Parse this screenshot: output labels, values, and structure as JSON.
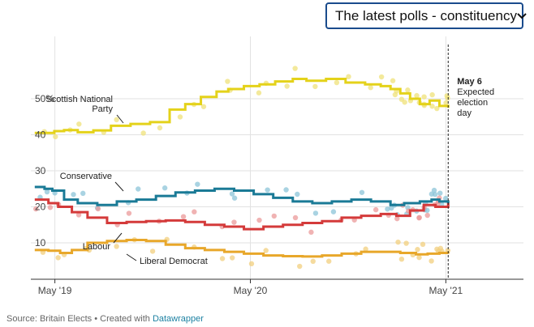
{
  "dropdown": {
    "selected": "The latest polls - constituency"
  },
  "footer": {
    "source_text": "Source: Britain Elects • Created with ",
    "tool_link": "Datawrapper"
  },
  "annotation": {
    "date": "May 6",
    "line1": "Expected",
    "line2": "election",
    "line3": "day"
  },
  "colors": {
    "snp": "#e4d21a",
    "conservative": "#1a7a96",
    "labour": "#d43a3a",
    "libdem": "#e8a72a",
    "snp_dot": "#efe27a",
    "con_dot": "#8cc4d8",
    "lab_dot": "#eb9a9a",
    "ld_dot": "#f2cf7e"
  },
  "chart_data": {
    "type": "line",
    "title": "",
    "xlabel": "",
    "ylabel": "",
    "ylim": [
      0,
      60
    ],
    "xlim": [
      2019.21,
      2021.73
    ],
    "x_ticks": [
      {
        "value": 2019.333,
        "label": "May '19"
      },
      {
        "value": 2020.333,
        "label": "May '20"
      },
      {
        "value": 2021.333,
        "label": "May '21"
      }
    ],
    "y_ticks": [
      {
        "value": 10,
        "label": "10"
      },
      {
        "value": 20,
        "label": "20"
      },
      {
        "value": 30,
        "label": "30"
      },
      {
        "value": 40,
        "label": "40"
      },
      {
        "value": 50,
        "label": "50%"
      }
    ],
    "reference_line": {
      "x": 2021.345,
      "label": "May 6 Expected election day"
    },
    "series": [
      {
        "name": "Scottish National Party",
        "label_line1": "Scottish National",
        "label_line2": "Party",
        "key": "snp",
        "x": [
          2019.23,
          2019.33,
          2019.38,
          2019.45,
          2019.53,
          2019.62,
          2019.72,
          2019.82,
          2019.92,
          2020.0,
          2020.08,
          2020.16,
          2020.22,
          2020.3,
          2020.38,
          2020.46,
          2020.55,
          2020.62,
          2020.72,
          2020.82,
          2020.92,
          2021.0,
          2021.05,
          2021.1,
          2021.15,
          2021.2,
          2021.25,
          2021.3,
          2021.345
        ],
        "values": [
          40.5,
          41,
          41.3,
          40.7,
          41.2,
          42.5,
          43,
          43.5,
          47,
          48.5,
          50.5,
          52,
          52.7,
          53.5,
          54,
          54.8,
          55.5,
          55,
          55.5,
          54.5,
          54,
          53.5,
          52.7,
          51.5,
          50,
          48.5,
          49.5,
          48,
          47.5
        ]
      },
      {
        "name": "Conservative",
        "key": "conservative",
        "x": [
          2019.23,
          2019.28,
          2019.32,
          2019.38,
          2019.45,
          2019.55,
          2019.65,
          2019.75,
          2019.85,
          2019.95,
          2020.05,
          2020.15,
          2020.25,
          2020.35,
          2020.45,
          2020.55,
          2020.65,
          2020.75,
          2020.85,
          2020.95,
          2021.05,
          2021.12,
          2021.2,
          2021.26,
          2021.3,
          2021.345
        ],
        "values": [
          25.5,
          25,
          24.5,
          22,
          21,
          20.5,
          21.5,
          22,
          23,
          24,
          24.5,
          25,
          24.5,
          23.5,
          22.5,
          21.5,
          21,
          21.5,
          22,
          21.5,
          20.5,
          21,
          21.5,
          22,
          21.5,
          21
        ]
      },
      {
        "name": "Labour",
        "key": "labour",
        "x": [
          2019.23,
          2019.3,
          2019.35,
          2019.42,
          2019.5,
          2019.6,
          2019.7,
          2019.8,
          2019.9,
          2020.0,
          2020.1,
          2020.2,
          2020.3,
          2020.4,
          2020.5,
          2020.6,
          2020.7,
          2020.8,
          2020.9,
          2021.0,
          2021.08,
          2021.15,
          2021.22,
          2021.28,
          2021.345
        ],
        "values": [
          22,
          21,
          20,
          18.5,
          17,
          15.5,
          15.8,
          16,
          16.2,
          15.8,
          15,
          14.5,
          13.8,
          14.5,
          15,
          15.5,
          16,
          17,
          17.5,
          18,
          17.5,
          19,
          20.5,
          20,
          21
        ]
      },
      {
        "name": "Liberal Democrat",
        "key": "libdem",
        "x": [
          2019.23,
          2019.3,
          2019.36,
          2019.42,
          2019.5,
          2019.6,
          2019.7,
          2019.8,
          2019.9,
          2020.0,
          2020.1,
          2020.2,
          2020.3,
          2020.4,
          2020.5,
          2020.6,
          2020.7,
          2020.8,
          2020.9,
          2021.0,
          2021.1,
          2021.18,
          2021.24,
          2021.3,
          2021.345
        ],
        "values": [
          8,
          7.8,
          7.2,
          8,
          10,
          10.5,
          10.8,
          10.5,
          9.5,
          8.5,
          8,
          7.5,
          7,
          6.5,
          6.3,
          6.2,
          6.5,
          7,
          7.5,
          7.5,
          7.2,
          6.8,
          7,
          7.2,
          7
        ]
      }
    ]
  }
}
